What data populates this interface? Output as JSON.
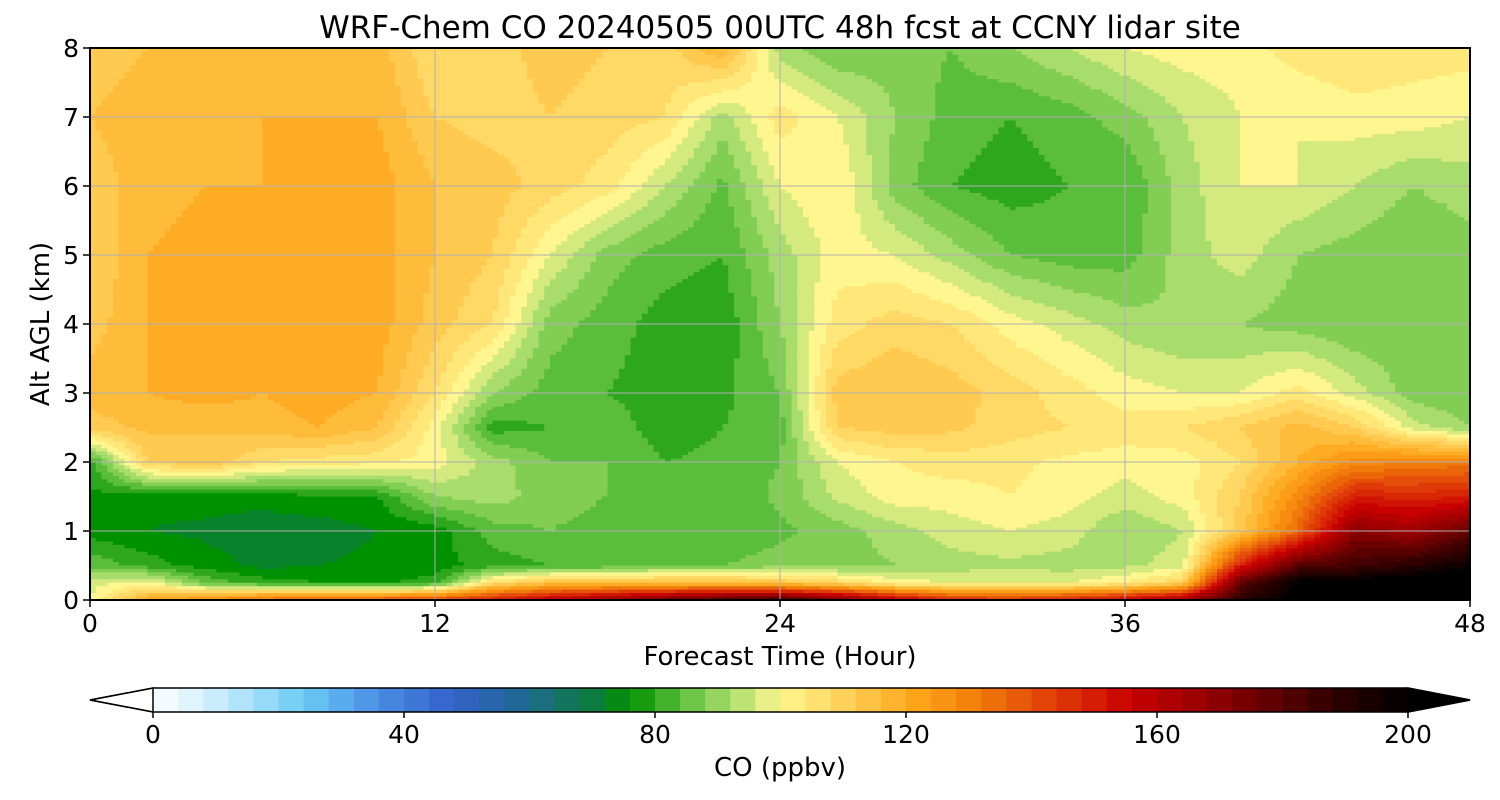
{
  "chart_data": {
    "type": "heatmap",
    "title": "WRF-Chem CO  20240505 00UTC 48h fcst at CCNY lidar site",
    "xlabel": "Forecast Time (Hour)",
    "ylabel": "Alt AGL (km)",
    "xlim": [
      0,
      48
    ],
    "ylim": [
      0,
      8
    ],
    "xticks": [
      0,
      12,
      24,
      36,
      48
    ],
    "yticks": [
      0,
      1,
      2,
      3,
      4,
      5,
      6,
      7,
      8
    ],
    "grid": true,
    "colorbar": {
      "label": "CO  (ppbv)",
      "range": [
        0,
        200
      ],
      "ticks": [
        0,
        40,
        80,
        120,
        160,
        200
      ],
      "extend": "both",
      "orientation": "horizontal",
      "stops": [
        {
          "v": 0,
          "c": "#ffffff"
        },
        {
          "v": 12,
          "c": "#bfe8fb"
        },
        {
          "v": 24,
          "c": "#6ccaf4"
        },
        {
          "v": 36,
          "c": "#4a8ee4"
        },
        {
          "v": 48,
          "c": "#3460c8"
        },
        {
          "v": 60,
          "c": "#1e6a8c"
        },
        {
          "v": 70,
          "c": "#0d7c40"
        },
        {
          "v": 76,
          "c": "#009100"
        },
        {
          "v": 84,
          "c": "#5bbd3c"
        },
        {
          "v": 92,
          "c": "#a8dc6c"
        },
        {
          "v": 100,
          "c": "#fff690"
        },
        {
          "v": 110,
          "c": "#ffd15a"
        },
        {
          "v": 122,
          "c": "#ffa41a"
        },
        {
          "v": 132,
          "c": "#f07a0a"
        },
        {
          "v": 144,
          "c": "#e03a08"
        },
        {
          "v": 156,
          "c": "#c80000"
        },
        {
          "v": 170,
          "c": "#8a0000"
        },
        {
          "v": 186,
          "c": "#3a0000"
        },
        {
          "v": 200,
          "c": "#000000"
        }
      ]
    },
    "field": {
      "x": [
        0,
        2,
        4,
        6,
        8,
        10,
        12,
        14,
        16,
        18,
        20,
        22,
        24,
        26,
        28,
        30,
        32,
        34,
        36,
        38,
        40,
        42,
        44,
        46,
        48
      ],
      "y": [
        0,
        0.25,
        0.5,
        1,
        1.5,
        2,
        2.5,
        3,
        4,
        5,
        6,
        7,
        8
      ],
      "z": [
        [
          98,
          120,
          128,
          135,
          138,
          140,
          142,
          150,
          160,
          168,
          176,
          182,
          186,
          175,
          160,
          148,
          146,
          150,
          156,
          166,
          190,
          202,
          205,
          205,
          205
        ],
        [
          96,
          100,
          85,
          80,
          78,
          77,
          80,
          106,
          114,
          114,
          115,
          115,
          113,
          108,
          100,
          98,
          98,
          98,
          102,
          110,
          178,
          200,
          202,
          205,
          205
        ],
        [
          85,
          80,
          76,
          73,
          74,
          75,
          76,
          80,
          82,
          83,
          86,
          86,
          88,
          88,
          90,
          92,
          93,
          92,
          93,
          96,
          150,
          180,
          185,
          190,
          198
        ],
        [
          76,
          74,
          73,
          71,
          72,
          74,
          76,
          84,
          86,
          84,
          82,
          82,
          85,
          88,
          92,
          96,
          98,
          96,
          90,
          94,
          112,
          135,
          170,
          165,
          178
        ],
        [
          77,
          75,
          76,
          76,
          77,
          78,
          90,
          92,
          88,
          86,
          82,
          83,
          87,
          95,
          100,
          100,
          102,
          100,
          96,
          100,
          110,
          128,
          150,
          148,
          150
        ],
        [
          80,
          110,
          114,
          106,
          104,
          103,
          100,
          92,
          86,
          86,
          82,
          83,
          86,
          98,
          102,
          104,
          103,
          101,
          100,
          100,
          106,
          118,
          128,
          130,
          132
        ],
        [
          112,
          115,
          114,
          116,
          118,
          114,
          100,
          80,
          82,
          84,
          80,
          82,
          84,
          110,
          112,
          111,
          108,
          106,
          104,
          106,
          110,
          116,
          110,
          96,
          90
        ],
        [
          116,
          118,
          120,
          118,
          120,
          118,
          106,
          90,
          84,
          82,
          80,
          81,
          86,
          112,
          114,
          112,
          108,
          104,
          100,
          98,
          98,
          104,
          96,
          88,
          86
        ],
        [
          112,
          118,
          120,
          120,
          122,
          120,
          112,
          106,
          88,
          84,
          80,
          79,
          90,
          104,
          108,
          106,
          100,
          96,
          92,
          90,
          90,
          88,
          86,
          86,
          86
        ],
        [
          110,
          118,
          120,
          120,
          122,
          120,
          114,
          110,
          98,
          88,
          84,
          82,
          92,
          100,
          98,
          92,
          86,
          84,
          84,
          92,
          96,
          90,
          88,
          86,
          88
        ],
        [
          112,
          116,
          118,
          118,
          120,
          120,
          114,
          112,
          108,
          104,
          94,
          85,
          98,
          102,
          88,
          82,
          80,
          82,
          82,
          92,
          98,
          98,
          94,
          90,
          92
        ],
        [
          114,
          116,
          116,
          118,
          118,
          118,
          110,
          108,
          110,
          108,
          106,
          92,
          104,
          98,
          90,
          84,
          82,
          84,
          88,
          94,
          98,
          98,
          100,
          100,
          98
        ],
        [
          112,
          114,
          116,
          118,
          116,
          116,
          106,
          108,
          112,
          110,
          108,
          118,
          92,
          86,
          88,
          86,
          90,
          94,
          98,
          100,
          100,
          104,
          106,
          104,
          104
        ]
      ]
    }
  }
}
